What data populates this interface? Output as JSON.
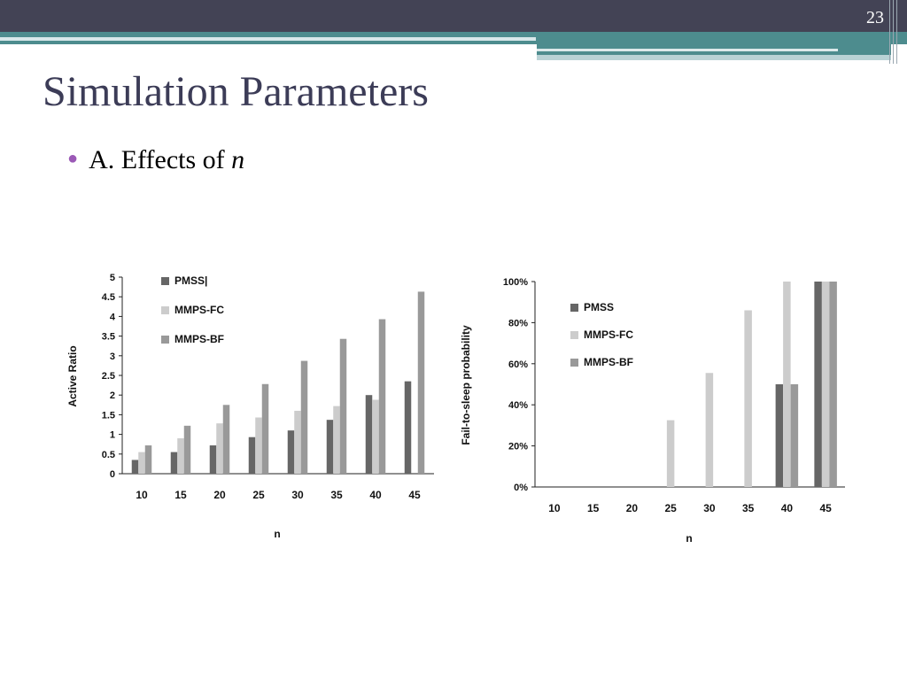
{
  "slide": {
    "number": "23",
    "title": "Simulation Parameters",
    "bullet": {
      "text": "A. Effects of ",
      "italic": "n"
    }
  },
  "colors": {
    "header_dark": "#434355",
    "teal": "#4d8c8e",
    "title": "#3c3c57",
    "bullet": "#9b59b6",
    "PMSS": "#666666",
    "MMPS-FC": "#cccccc",
    "MMPS-BF": "#999999"
  },
  "chart_data": [
    {
      "type": "bar",
      "categories": [
        "10",
        "15",
        "20",
        "25",
        "30",
        "35",
        "40",
        "45"
      ],
      "series": [
        {
          "name": "PMSS",
          "values": [
            0.35,
            0.55,
            0.72,
            0.93,
            1.1,
            1.37,
            2.0,
            2.35
          ]
        },
        {
          "name": "MMPS-FC",
          "values": [
            0.55,
            0.9,
            1.28,
            1.43,
            1.6,
            1.72,
            1.88,
            0
          ]
        },
        {
          "name": "MMPS-BF",
          "values": [
            0.72,
            1.22,
            1.75,
            2.28,
            2.87,
            3.43,
            3.93,
            4.63
          ]
        }
      ],
      "title": "",
      "xlabel": "n",
      "ylabel": "Active Ratio",
      "ylim": [
        0,
        5
      ],
      "yticks": [
        "0",
        "0.5",
        "1",
        "1.5",
        "2",
        "2.5",
        "3",
        "3.5",
        "4",
        "4.5",
        "5"
      ],
      "legend": "top-left",
      "legend_first_label": "PMSS|",
      "grid": false
    },
    {
      "type": "bar",
      "categories": [
        "10",
        "15",
        "20",
        "25",
        "30",
        "35",
        "40",
        "45"
      ],
      "series": [
        {
          "name": "PMSS",
          "values": [
            0,
            0,
            0,
            0,
            0,
            0,
            50,
            100
          ]
        },
        {
          "name": "MMPS-FC",
          "values": [
            0,
            0,
            0,
            32.5,
            55.5,
            86,
            100,
            100
          ]
        },
        {
          "name": "MMPS-BF",
          "values": [
            0,
            0,
            0,
            0,
            0,
            0,
            50,
            100
          ]
        }
      ],
      "title": "",
      "xlabel": "n",
      "ylabel": "Fail-to-sleep probability",
      "ylim": [
        0,
        100
      ],
      "yticks": [
        "0%",
        "20%",
        "40%",
        "60%",
        "80%",
        "100%"
      ],
      "legend": "top-left",
      "grid": false
    }
  ]
}
